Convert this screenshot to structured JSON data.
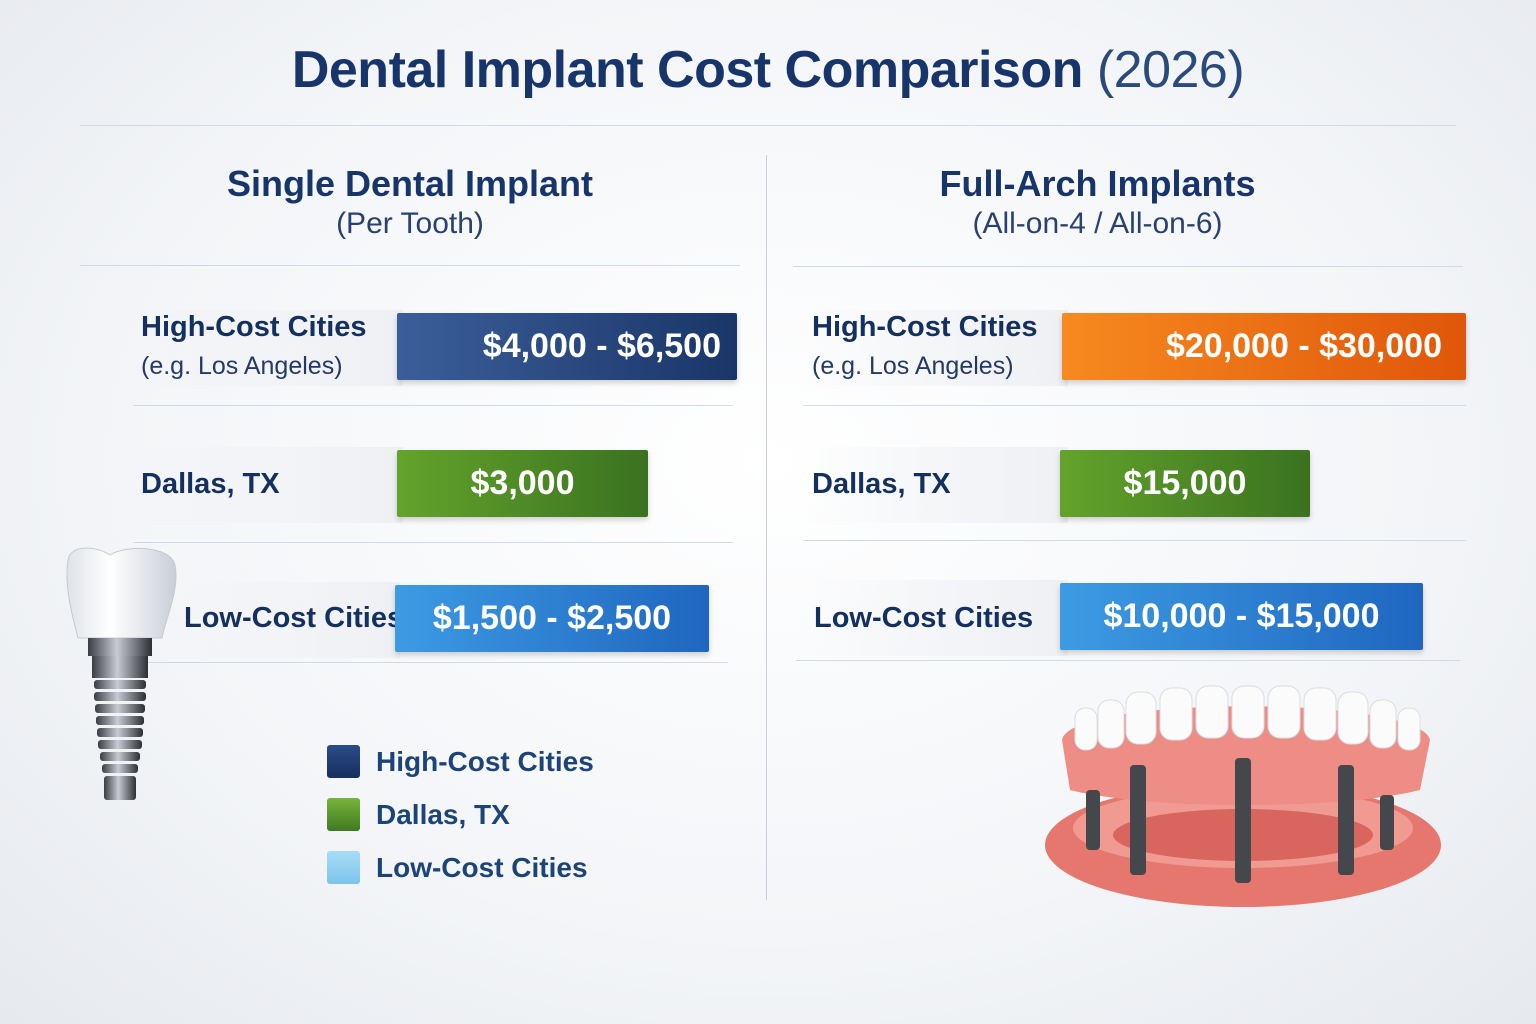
{
  "title": {
    "main": "Dental Implant Cost Comparison",
    "year": "(2026)"
  },
  "colors": {
    "high_single": "#1f3d73",
    "high_fullarch": "#ef6c12",
    "dallas": "#4c8a25",
    "low": "#2a7ed2",
    "legend_low": "#8fd0f2"
  },
  "chart_data": [
    {
      "type": "bar",
      "title": "Single Dental Implant",
      "subtitle": "(Per Tooth)",
      "categories": [
        "High-Cost Cities",
        "Dallas, TX",
        "Low-Cost Cities"
      ],
      "category_notes": [
        "(e.g. Los Angeles)",
        "",
        ""
      ],
      "values": [
        [
          4000,
          6500
        ],
        [
          3000,
          3000
        ],
        [
          1500,
          2500
        ]
      ],
      "labels": [
        "$4,000 - $6,500",
        "$3,000",
        "$1,500 - $2,500"
      ]
    },
    {
      "type": "bar",
      "title": "Full-Arch Implants",
      "subtitle": "(All-on-4 / All-on-6)",
      "categories": [
        "High-Cost Cities",
        "Dallas, TX",
        "Low-Cost Cities"
      ],
      "category_notes": [
        "(e.g. Los Angeles)",
        "",
        ""
      ],
      "values": [
        [
          20000,
          30000
        ],
        [
          15000,
          15000
        ],
        [
          10000,
          15000
        ]
      ],
      "labels": [
        "$20,000 - $30,000",
        "$15,000",
        "$10,000 - $15,000"
      ]
    }
  ],
  "legend": [
    "High-Cost Cities",
    "Dallas, TX",
    "Low-Cost Cities"
  ],
  "icons": [
    "dental-implant-icon",
    "full-arch-denture-icon"
  ]
}
